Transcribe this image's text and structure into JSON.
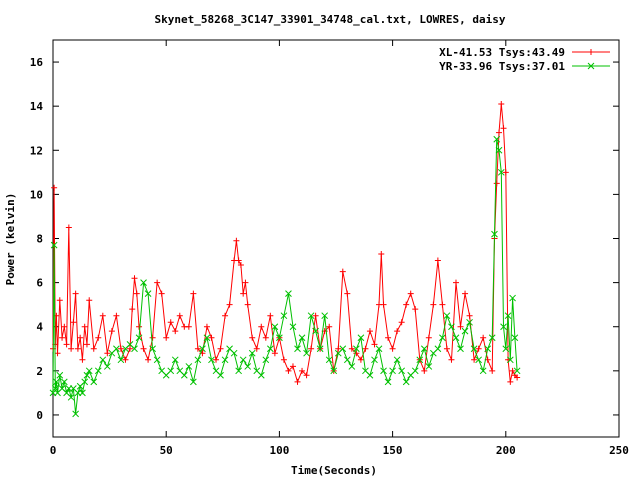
{
  "chart_data": {
    "type": "line",
    "title": "Skynet_58268_3C147_33901_34748_cal.txt, LOWRES, daisy",
    "xlabel": "Time(Seconds)",
    "ylabel": "Power (kelvin)",
    "xlim": [
      0,
      250
    ],
    "ylim": [
      -1,
      17
    ],
    "xticks": [
      0,
      50,
      100,
      150,
      200,
      250
    ],
    "yticks": [
      0,
      2,
      4,
      6,
      8,
      10,
      12,
      14,
      16
    ],
    "grid": false,
    "legend_position": "top-right",
    "series": [
      {
        "name": "XL-41.53 Tsys:43.49",
        "color": "#ff0000",
        "marker": "plus",
        "x": [
          0,
          0.5,
          1,
          1.5,
          2,
          3,
          4,
          5,
          6,
          7,
          8,
          9,
          10,
          11,
          12,
          13,
          14,
          15,
          16,
          18,
          20,
          22,
          24,
          26,
          28,
          30,
          32,
          34,
          35,
          36,
          37,
          38,
          40,
          42,
          44,
          46,
          48,
          50,
          52,
          54,
          56,
          58,
          60,
          62,
          64,
          66,
          68,
          70,
          72,
          74,
          76,
          78,
          80,
          81,
          82,
          83,
          84,
          85,
          86,
          88,
          90,
          92,
          94,
          96,
          98,
          100,
          102,
          104,
          106,
          108,
          110,
          112,
          114,
          116,
          118,
          120,
          122,
          124,
          126,
          128,
          130,
          132,
          134,
          136,
          138,
          140,
          142,
          144,
          145,
          146,
          148,
          150,
          152,
          154,
          156,
          158,
          160,
          162,
          164,
          166,
          168,
          170,
          172,
          174,
          176,
          178,
          180,
          182,
          184,
          186,
          188,
          190,
          192,
          194,
          195,
          196,
          197,
          198,
          199,
          200,
          201,
          202,
          203,
          204,
          205
        ],
        "y": [
          3.0,
          10.3,
          3.2,
          4.5,
          2.8,
          5.2,
          3.5,
          4.0,
          3.2,
          8.5,
          3.0,
          4.2,
          5.5,
          3.0,
          3.5,
          2.5,
          4.0,
          3.2,
          5.2,
          3.0,
          3.5,
          4.5,
          2.8,
          3.8,
          4.5,
          3.0,
          2.5,
          3.0,
          4.8,
          6.2,
          5.5,
          4.0,
          3.0,
          2.5,
          3.5,
          6.0,
          5.5,
          3.5,
          4.2,
          3.8,
          4.5,
          4.0,
          4.0,
          5.5,
          3.0,
          2.8,
          4.0,
          3.5,
          2.5,
          3.0,
          4.5,
          5.0,
          7.0,
          7.9,
          7.0,
          6.8,
          5.5,
          6.0,
          5.0,
          3.5,
          3.0,
          4.0,
          3.5,
          4.5,
          2.8,
          3.5,
          2.5,
          2.0,
          2.2,
          1.5,
          2.0,
          1.8,
          3.0,
          4.5,
          3.0,
          3.8,
          4.0,
          2.0,
          3.0,
          6.5,
          5.5,
          3.0,
          2.8,
          2.5,
          3.0,
          3.8,
          3.2,
          5.0,
          7.3,
          5.0,
          3.5,
          3.0,
          3.8,
          4.2,
          5.0,
          5.5,
          4.8,
          2.5,
          2.0,
          3.5,
          5.0,
          7.0,
          5.0,
          3.0,
          2.5,
          6.0,
          4.0,
          5.5,
          4.5,
          2.5,
          3.0,
          3.5,
          2.5,
          2.0,
          8.0,
          10.5,
          12.8,
          14.1,
          13.0,
          11.0,
          2.5,
          1.5,
          2.0,
          1.8,
          1.7
        ]
      },
      {
        "name": "YR-33.96 Tsys:37.01",
        "color": "#00c000",
        "marker": "cross",
        "x": [
          0,
          0.5,
          1,
          1.5,
          2,
          3,
          4,
          5,
          6,
          7,
          8,
          9,
          10,
          11,
          12,
          13,
          14,
          15,
          16,
          18,
          20,
          22,
          24,
          26,
          28,
          30,
          32,
          34,
          36,
          38,
          40,
          42,
          44,
          46,
          48,
          50,
          52,
          54,
          56,
          58,
          60,
          62,
          64,
          66,
          68,
          70,
          72,
          74,
          76,
          78,
          80,
          82,
          84,
          86,
          88,
          90,
          92,
          94,
          96,
          98,
          100,
          102,
          104,
          106,
          108,
          110,
          112,
          114,
          116,
          118,
          120,
          122,
          124,
          126,
          128,
          130,
          132,
          134,
          136,
          138,
          140,
          142,
          144,
          146,
          148,
          150,
          152,
          154,
          156,
          158,
          160,
          162,
          164,
          166,
          168,
          170,
          172,
          174,
          176,
          178,
          180,
          182,
          184,
          186,
          188,
          190,
          192,
          194,
          195,
          196,
          197,
          198,
          199,
          200,
          201,
          202,
          203,
          204,
          205
        ],
        "y": [
          1.0,
          7.7,
          1.2,
          1.5,
          1.0,
          1.8,
          1.2,
          1.5,
          1.0,
          1.2,
          0.8,
          1.2,
          0.05,
          1.0,
          1.3,
          1.0,
          1.5,
          1.8,
          2.0,
          1.5,
          2.0,
          2.5,
          2.2,
          2.8,
          3.0,
          2.5,
          3.0,
          3.2,
          3.0,
          3.5,
          6.0,
          5.5,
          3.0,
          2.5,
          2.0,
          1.8,
          2.0,
          2.5,
          2.0,
          1.8,
          2.2,
          1.5,
          2.5,
          3.0,
          3.5,
          2.5,
          2.0,
          1.8,
          2.5,
          3.0,
          2.8,
          2.0,
          2.5,
          2.2,
          2.8,
          2.0,
          1.8,
          2.5,
          3.0,
          4.0,
          3.5,
          4.5,
          5.5,
          4.0,
          3.0,
          3.5,
          2.8,
          4.5,
          3.8,
          3.0,
          4.5,
          2.5,
          2.0,
          2.8,
          3.0,
          2.5,
          2.2,
          3.0,
          3.5,
          2.0,
          1.8,
          2.5,
          3.0,
          2.0,
          1.5,
          2.0,
          2.5,
          2.0,
          1.5,
          1.8,
          2.0,
          2.5,
          3.0,
          2.2,
          2.8,
          3.0,
          3.5,
          4.5,
          4.0,
          3.5,
          3.0,
          3.8,
          4.2,
          3.0,
          2.5,
          2.0,
          3.0,
          3.5,
          8.2,
          12.5,
          12.0,
          11.0,
          4.0,
          3.0,
          4.5,
          2.5,
          5.3,
          3.5,
          2.0
        ]
      }
    ]
  }
}
